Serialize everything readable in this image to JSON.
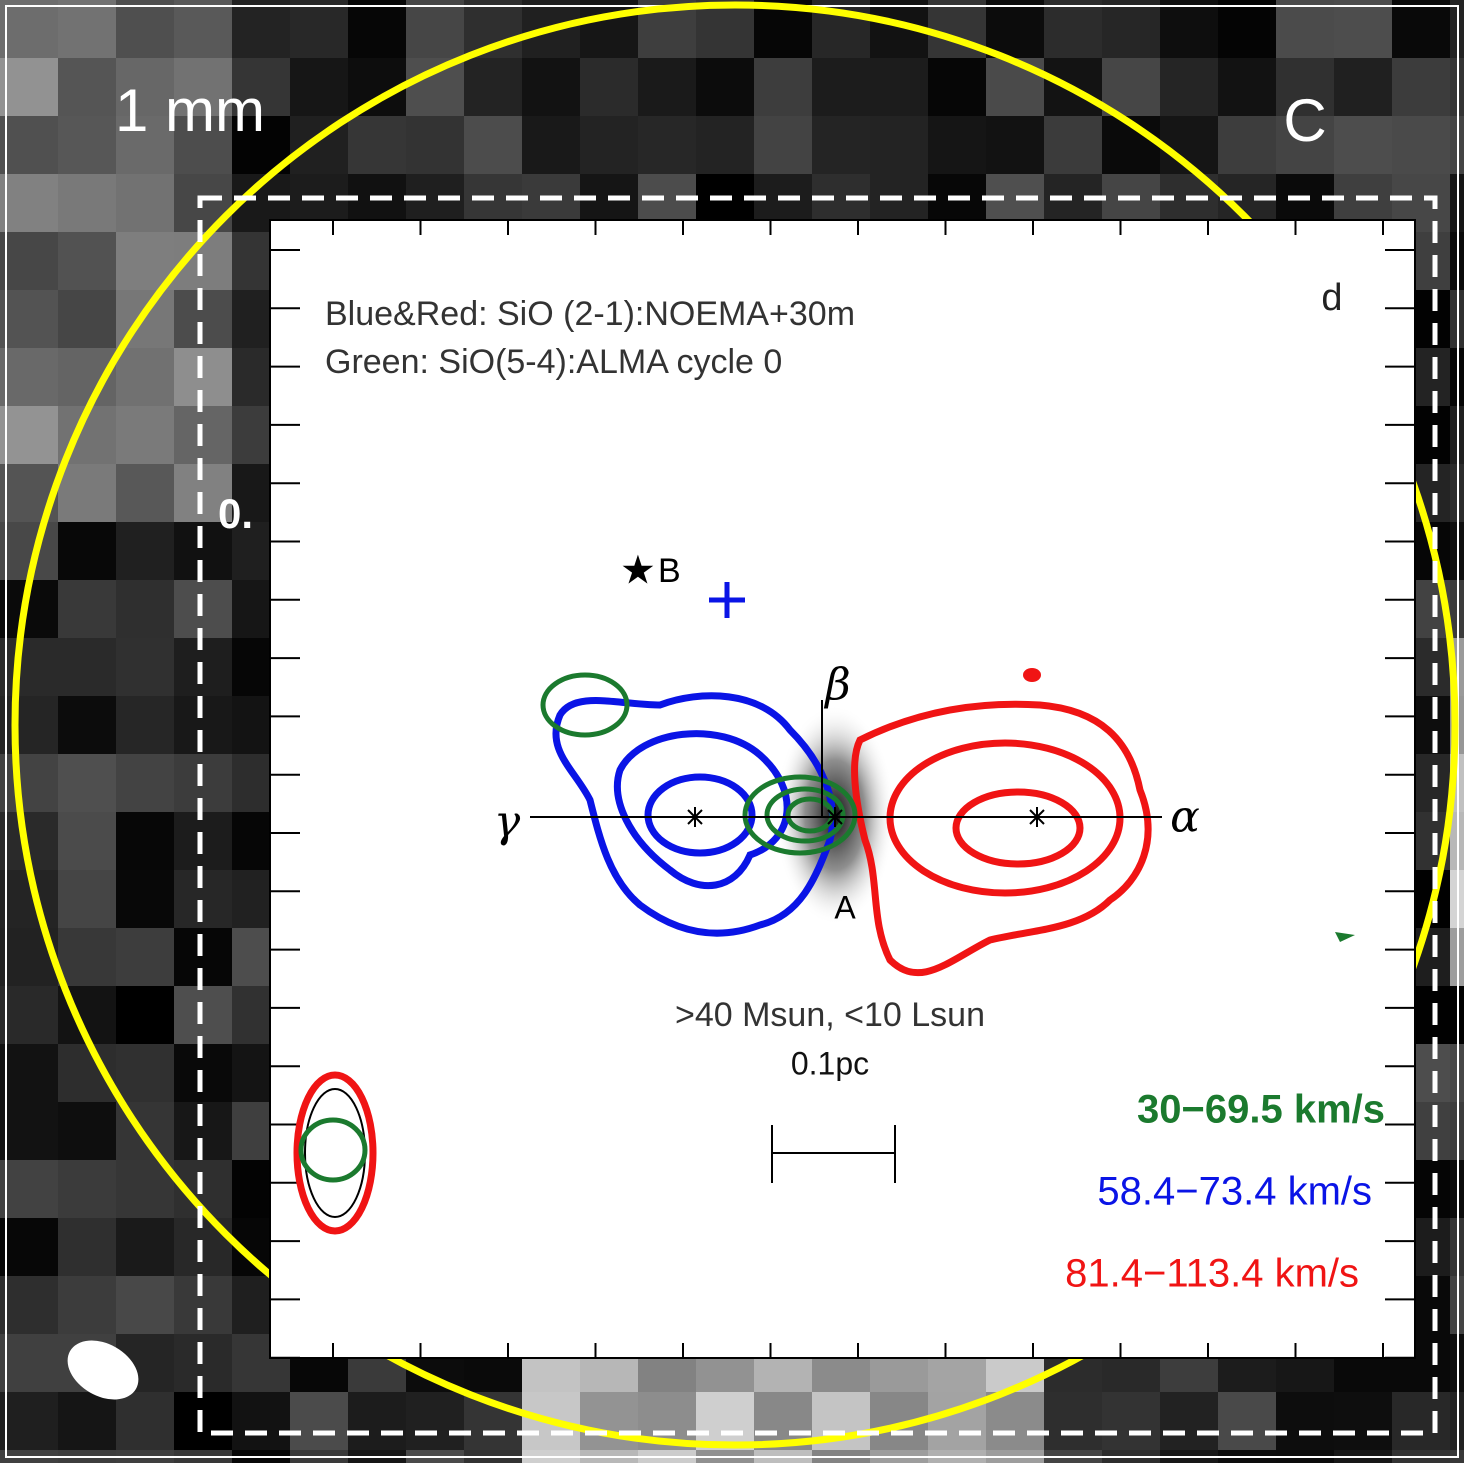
{
  "outer_panel": {
    "band_label": "1 mm",
    "panel_letter": "C",
    "partial_label": "0."
  },
  "inset_panel": {
    "panel_letter": "d",
    "legend_lines": [
      "Blue&Red: SiO (2-1):NOEMA+30m",
      "Green: SiO(5-4):ALMA cycle 0"
    ],
    "markers": {
      "star": "B",
      "center": "A",
      "alpha": "α",
      "beta": "β",
      "gamma": "γ"
    },
    "annotation": ">40 Msun, <10 Lsun",
    "scale_bar": "0.1pc",
    "velocity_ranges": [
      {
        "label": "30−69.5 km/s",
        "color": "#1b7a2e"
      },
      {
        "label": "58.4−73.4 km/s",
        "color": "#0a14e6"
      },
      {
        "label": "81.4−113.4 km/s",
        "color": "#f01414"
      }
    ]
  }
}
